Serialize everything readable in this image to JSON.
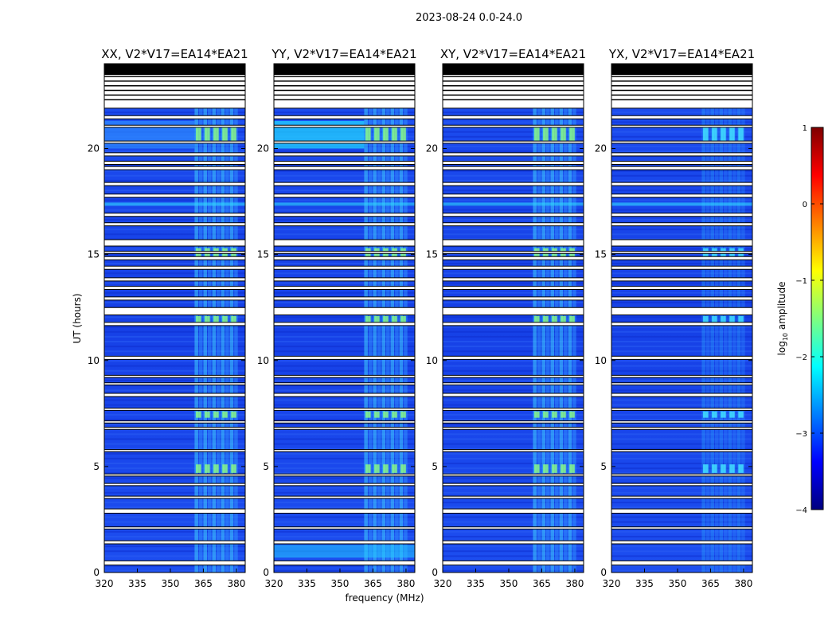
{
  "figure": {
    "suptitle": "2023-08-24 0.0-24.0",
    "xlabel": "frequency (MHz)",
    "ylabel": "UT (hours)",
    "colorbar_label_prefix": "log",
    "colorbar_label_sub": "10",
    "colorbar_label_suffix": " amplitude"
  },
  "colors": {
    "jet": [
      "#00007f",
      "#0000ff",
      "#007fff",
      "#00ffff",
      "#7fff7f",
      "#ffff00",
      "#ff7f00",
      "#ff0000",
      "#7f0000"
    ],
    "background": "#ffffff"
  },
  "chart_data": {
    "type": "heatmap",
    "panels": [
      {
        "title": "XX, V2*V17=EA14*EA21",
        "strong_cols": true,
        "fill_20_22": true
      },
      {
        "title": "YY, V2*V17=EA14*EA21",
        "strong_cols": true,
        "fill_20_22": true
      },
      {
        "title": "XY, V2*V17=EA14*EA21",
        "strong_cols": true,
        "fill_20_22": false
      },
      {
        "title": "YX, V2*V17=EA14*EA21",
        "strong_cols": false,
        "fill_20_22": false
      }
    ],
    "x_ticks": [
      320,
      335,
      350,
      365,
      380
    ],
    "x_range": [
      320,
      384
    ],
    "y_ticks": [
      0,
      5,
      10,
      15,
      20
    ],
    "y_range": [
      0,
      24
    ],
    "rfi_band_mhz": [
      361,
      381
    ],
    "colorbar": {
      "ticks": [
        1,
        0,
        -1,
        -2,
        -3,
        -4
      ],
      "range": [
        -4,
        1
      ]
    },
    "flagged_bands_hours": [
      [
        0.35,
        0.55
      ],
      [
        1.35,
        1.5
      ],
      [
        2.05,
        2.15
      ],
      [
        2.8,
        3.0
      ],
      [
        3.5,
        3.6
      ],
      [
        4.1,
        4.2
      ],
      [
        4.55,
        4.65
      ],
      [
        5.7,
        5.8
      ],
      [
        6.75,
        6.85
      ],
      [
        7.05,
        7.15
      ],
      [
        7.65,
        7.75
      ],
      [
        8.3,
        8.45
      ],
      [
        8.85,
        8.95
      ],
      [
        9.2,
        9.3
      ],
      [
        10.05,
        10.2
      ],
      [
        11.65,
        11.8
      ],
      [
        12.15,
        12.5
      ],
      [
        12.85,
        13.0
      ],
      [
        13.35,
        13.5
      ],
      [
        13.75,
        13.9
      ],
      [
        14.3,
        14.45
      ],
      [
        14.75,
        14.9
      ],
      [
        15.05,
        15.15
      ],
      [
        15.4,
        15.7
      ],
      [
        16.35,
        16.5
      ],
      [
        16.8,
        16.95
      ],
      [
        17.7,
        17.85
      ],
      [
        18.25,
        18.4
      ],
      [
        19.0,
        19.15
      ],
      [
        19.25,
        19.4
      ],
      [
        19.65,
        19.8
      ],
      [
        20.25,
        20.35
      ],
      [
        21.0,
        21.1
      ],
      [
        21.4,
        21.55
      ],
      [
        21.9,
        24.0
      ]
    ]
  }
}
